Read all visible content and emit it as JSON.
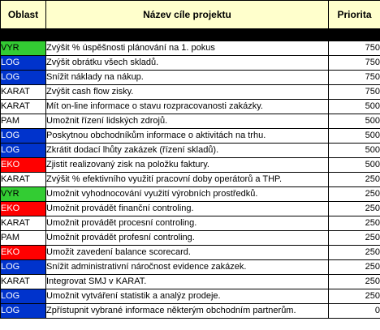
{
  "table": {
    "headers": {
      "area": "Oblast",
      "name": "Název cíle projektu",
      "priority": "Priorita"
    },
    "area_colors": {
      "VYR": "#33cc33",
      "LOG": "#0033cc",
      "EKO": "#ff0000",
      "KARAT": "#ffffff",
      "PAM": "#ffffff"
    },
    "rows": [
      {
        "area": "VYR",
        "name": "Zvýšit % úspěšnosti plánování na 1. pokus",
        "priority": "750"
      },
      {
        "area": "LOG",
        "name": "Zvýšit obrátku všech skladů.",
        "priority": "750"
      },
      {
        "area": "LOG",
        "name": "Snížit náklady na nákup.",
        "priority": "750"
      },
      {
        "area": "KARAT",
        "name": "Zvýšit cash flow zisky.",
        "priority": "750"
      },
      {
        "area": "KARAT",
        "name": "Mít on-line informace o stavu rozpracovanosti zakázky.",
        "priority": "500"
      },
      {
        "area": "PAM",
        "name": "Umožnit řízení lidských zdrojů.",
        "priority": "500"
      },
      {
        "area": "LOG",
        "name": "Poskytnou obchodníkům informace o aktivitách na trhu.",
        "priority": "500"
      },
      {
        "area": "LOG",
        "name": "Zkrátit dodací lhůty zakázek (řízení skladů).",
        "priority": "500"
      },
      {
        "area": "EKO",
        "name": "Zjistit realizovaný zisk na položku faktury.",
        "priority": "500"
      },
      {
        "area": "KARAT",
        "name": "Zvýšit % efektivního využití pracovní doby operátorů a THP.",
        "priority": "250"
      },
      {
        "area": "VYR",
        "name": "Umožnit vyhodnocování využití výrobních prostředků.",
        "priority": "250"
      },
      {
        "area": "EKO",
        "name": "Umožnit provádět finanční controling.",
        "priority": "250"
      },
      {
        "area": "KARAT",
        "name": "Umožnit provádět procesní controling.",
        "priority": "250"
      },
      {
        "area": "PAM",
        "name": "Umožnit provádět profesní controling.",
        "priority": "250"
      },
      {
        "area": "EKO",
        "name": "Umožit zavedení balance scorecard.",
        "priority": "250"
      },
      {
        "area": "LOG",
        "name": "Snížit administrativní náročnost evidence zakázek.",
        "priority": "250"
      },
      {
        "area": "KARAT",
        "name": "Integrovat SMJ v KARAT.",
        "priority": "250"
      },
      {
        "area": "LOG",
        "name": "Umožnit vytváření statistik a analýz prodeje.",
        "priority": "250"
      },
      {
        "area": "LOG",
        "name": "Zpřístupnit vybrané informace některým obchodním partnerům.",
        "priority": "0"
      }
    ]
  }
}
